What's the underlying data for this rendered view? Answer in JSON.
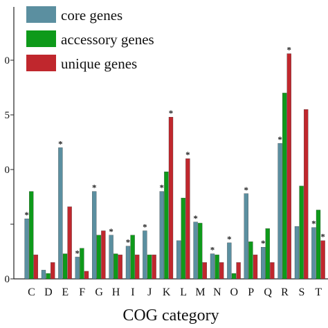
{
  "chart_data": {
    "type": "bar",
    "xlabel": "COG category",
    "ylabel": "",
    "categories": [
      "C",
      "D",
      "E",
      "F",
      "G",
      "H",
      "I",
      "J",
      "K",
      "L",
      "M",
      "N",
      "O",
      "P",
      "Q",
      "R",
      "S",
      "T"
    ],
    "ylim": [
      0,
      25
    ],
    "y_tick_values": [
      0,
      5,
      10,
      15,
      20
    ],
    "y_tick_labels_visible": [
      "0",
      "",
      "0",
      "5",
      "0"
    ],
    "legend_position": "top-left",
    "grid": false,
    "series": [
      {
        "name": "core genes",
        "color": "#5b8fa0",
        "values": [
          5.5,
          0.8,
          12.0,
          2.0,
          8.0,
          4.0,
          3.0,
          4.4,
          8.0,
          3.5,
          5.2,
          2.3,
          3.3,
          7.8,
          2.9,
          12.4,
          4.8,
          4.7
        ],
        "asterisks": [
          true,
          false,
          true,
          true,
          true,
          true,
          true,
          true,
          true,
          false,
          true,
          true,
          true,
          true,
          true,
          true,
          false,
          true
        ]
      },
      {
        "name": "accessory genes",
        "color": "#0e9a1a",
        "values": [
          8.0,
          0.5,
          2.3,
          2.8,
          4.0,
          2.3,
          4.0,
          2.2,
          9.8,
          7.4,
          5.1,
          2.2,
          0.5,
          3.4,
          4.6,
          17.0,
          8.5,
          6.3
        ],
        "asterisks": [
          false,
          false,
          false,
          false,
          false,
          false,
          false,
          false,
          false,
          false,
          false,
          false,
          false,
          false,
          false,
          false,
          false,
          false
        ]
      },
      {
        "name": "unique genes",
        "color": "#c0272d",
        "values": [
          2.2,
          1.5,
          6.6,
          0.7,
          4.4,
          2.2,
          2.2,
          2.2,
          14.8,
          11.0,
          1.5,
          1.5,
          1.5,
          2.2,
          1.5,
          20.6,
          15.5,
          3.5
        ],
        "asterisks": [
          false,
          false,
          false,
          false,
          false,
          false,
          false,
          false,
          true,
          true,
          false,
          false,
          false,
          false,
          false,
          true,
          false,
          true
        ]
      }
    ]
  }
}
